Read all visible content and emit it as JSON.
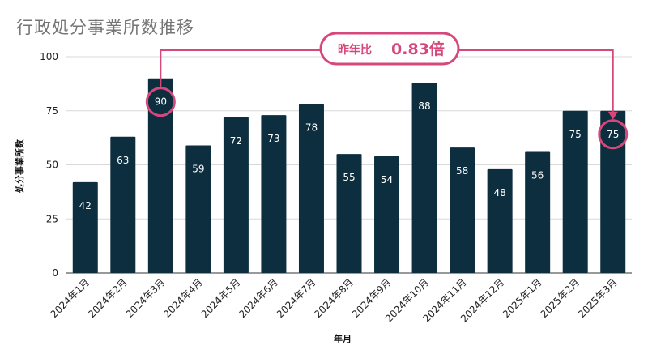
{
  "chart_data": {
    "type": "bar",
    "title": "行政処分事業所数推移",
    "xlabel": "年月",
    "ylabel": "処分事業所数",
    "ylim": [
      0,
      100
    ],
    "yticks": [
      0,
      25,
      50,
      75,
      100
    ],
    "grid": true,
    "categories": [
      "2024年1月",
      "2024年2月",
      "2024年3月",
      "2024年4月",
      "2024年5月",
      "2024年6月",
      "2024年7月",
      "2024年8月",
      "2024年9月",
      "2024年10月",
      "2024年11月",
      "2024年12月",
      "2025年1月",
      "2025年2月",
      "2025年3月"
    ],
    "values": [
      42,
      63,
      90,
      59,
      72,
      73,
      78,
      55,
      54,
      88,
      58,
      48,
      56,
      75,
      75
    ],
    "bar_color": "#0d2e3e",
    "annotation": {
      "label": "昨年比",
      "value": "0.83倍",
      "from_category": "2024年3月",
      "to_category": "2025年3月",
      "color": "#d6487b"
    }
  }
}
